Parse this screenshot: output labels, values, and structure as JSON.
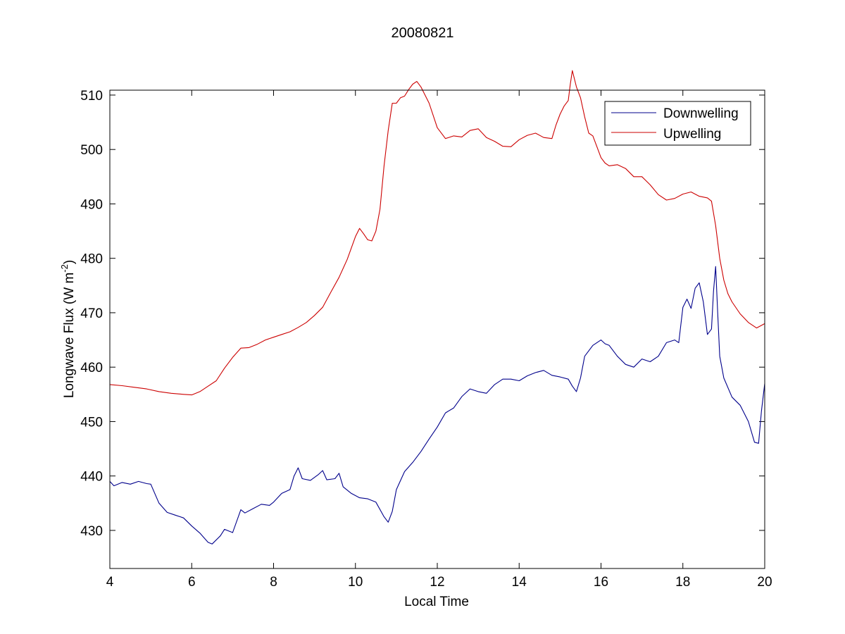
{
  "chart_data": {
    "type": "line",
    "title": "20080821",
    "xlabel": "Local Time",
    "ylabel_main": "Longwave Flux (W m",
    "ylabel_sup": "-2",
    "ylabel_close": ")",
    "xlim": [
      4,
      20
    ],
    "ylim": [
      423,
      510.9
    ],
    "xticks": [
      4,
      6,
      8,
      10,
      12,
      14,
      16,
      18,
      20
    ],
    "yticks": [
      430,
      440,
      450,
      460,
      470,
      480,
      490,
      500,
      510
    ],
    "grid": false,
    "legend_position": "top-right",
    "series": [
      {
        "name": "Downwelling",
        "color": "#00008b",
        "x": [
          4.0,
          4.1,
          4.3,
          4.5,
          4.7,
          4.9,
          5.0,
          5.2,
          5.4,
          5.6,
          5.8,
          6.0,
          6.2,
          6.4,
          6.5,
          6.7,
          6.8,
          7.0,
          7.2,
          7.3,
          7.5,
          7.7,
          7.9,
          8.0,
          8.2,
          8.4,
          8.5,
          8.6,
          8.7,
          8.9,
          9.1,
          9.2,
          9.3,
          9.5,
          9.6,
          9.7,
          9.9,
          10.1,
          10.3,
          10.5,
          10.7,
          10.8,
          10.9,
          11.0,
          11.2,
          11.4,
          11.6,
          11.8,
          12.0,
          12.2,
          12.4,
          12.6,
          12.8,
          13.0,
          13.2,
          13.4,
          13.6,
          13.8,
          14.0,
          14.2,
          14.4,
          14.6,
          14.8,
          15.0,
          15.2,
          15.3,
          15.4,
          15.5,
          15.6,
          15.8,
          16.0,
          16.1,
          16.2,
          16.4,
          16.6,
          16.8,
          17.0,
          17.2,
          17.4,
          17.6,
          17.8,
          17.9,
          18.0,
          18.1,
          18.2,
          18.3,
          18.4,
          18.5,
          18.6,
          18.7,
          18.75,
          18.8,
          18.85,
          18.9,
          19.0,
          19.2,
          19.4,
          19.6,
          19.75,
          19.85,
          19.92,
          20.0
        ],
        "y": [
          439,
          438.2,
          438.8,
          438.5,
          439,
          438.6,
          438.5,
          435,
          433.3,
          432.8,
          432.3,
          430.8,
          429.5,
          427.8,
          427.5,
          429,
          430.2,
          429.6,
          433.8,
          433.2,
          434,
          434.8,
          434.6,
          435.2,
          436.8,
          437.5,
          440,
          441.5,
          439.5,
          439.2,
          440.3,
          441,
          439.3,
          439.5,
          440.5,
          438,
          436.8,
          436,
          435.8,
          435.2,
          432.5,
          431.5,
          433.5,
          437.5,
          440.8,
          442.5,
          444.5,
          446.8,
          449,
          451.6,
          452.5,
          454.6,
          456,
          455.5,
          455.2,
          456.8,
          457.8,
          457.8,
          457.5,
          458.4,
          459,
          459.4,
          458.5,
          458.2,
          457.8,
          456.5,
          455.5,
          458,
          462,
          464,
          465,
          464.3,
          464,
          462,
          460.5,
          460,
          461.5,
          461,
          462,
          464.5,
          465,
          464.5,
          471,
          472.5,
          470.8,
          474.5,
          475.5,
          472,
          466,
          467,
          474,
          478.5,
          470,
          462,
          458,
          454.5,
          453,
          450,
          446.2,
          446,
          452,
          457
        ]
      },
      {
        "name": "Upwelling",
        "color": "#cc0000",
        "x": [
          4.0,
          4.3,
          4.6,
          4.9,
          5.2,
          5.5,
          5.8,
          6.0,
          6.2,
          6.4,
          6.6,
          6.8,
          7.0,
          7.2,
          7.4,
          7.6,
          7.8,
          8.0,
          8.2,
          8.4,
          8.6,
          8.8,
          9.0,
          9.2,
          9.4,
          9.6,
          9.8,
          10.0,
          10.1,
          10.2,
          10.3,
          10.4,
          10.5,
          10.6,
          10.7,
          10.8,
          10.9,
          11.0,
          11.1,
          11.2,
          11.3,
          11.4,
          11.5,
          11.6,
          11.8,
          12.0,
          12.2,
          12.4,
          12.6,
          12.8,
          13.0,
          13.2,
          13.4,
          13.6,
          13.8,
          14.0,
          14.2,
          14.4,
          14.6,
          14.8,
          14.9,
          15.0,
          15.1,
          15.2,
          15.25,
          15.3,
          15.4,
          15.5,
          15.6,
          15.7,
          15.8,
          15.9,
          16.0,
          16.1,
          16.2,
          16.4,
          16.6,
          16.8,
          17.0,
          17.2,
          17.4,
          17.6,
          17.8,
          18.0,
          18.2,
          18.4,
          18.6,
          18.7,
          18.8,
          18.9,
          19.0,
          19.1,
          19.2,
          19.4,
          19.6,
          19.8,
          19.9,
          20.0
        ],
        "y": [
          456.8,
          456.6,
          456.3,
          456,
          455.5,
          455.2,
          455,
          454.9,
          455.5,
          456.5,
          457.5,
          459.8,
          461.8,
          463.5,
          463.6,
          464.2,
          465,
          465.5,
          466,
          466.5,
          467.3,
          468.2,
          469.5,
          471,
          473.8,
          476.5,
          479.8,
          484,
          485.5,
          484.5,
          483.4,
          483.2,
          485,
          489,
          497,
          503.5,
          508.5,
          508.5,
          509.5,
          509.8,
          511,
          512,
          512.5,
          511.5,
          508.5,
          504,
          502,
          502.5,
          502.3,
          503.5,
          503.8,
          502.2,
          501.5,
          500.6,
          500.5,
          501.8,
          502.6,
          503,
          502.2,
          502,
          504.5,
          506.5,
          508,
          509,
          512,
          514.5,
          511.5,
          509.5,
          506,
          503,
          502.5,
          500.5,
          498.5,
          497.5,
          497,
          497.2,
          496.5,
          495,
          495,
          493.5,
          491.7,
          490.7,
          491,
          491.8,
          492.2,
          491.4,
          491.1,
          490.5,
          486,
          480,
          476,
          473.5,
          472,
          469.8,
          468.2,
          467.2,
          467.6,
          468
        ]
      }
    ]
  }
}
